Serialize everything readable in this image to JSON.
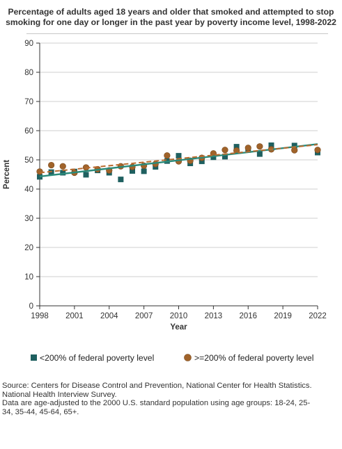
{
  "chart_data": {
    "type": "scatter",
    "title": "Percentage of adults aged 18 years and older that smoked and attempted to stop smoking for one day or longer in the past year by poverty income level, 1998-2022",
    "xlabel": "Year",
    "ylabel": "Percent",
    "xlim": [
      1998,
      2022
    ],
    "ylim": [
      0,
      90
    ],
    "xticks": [
      1998,
      2001,
      2004,
      2007,
      2010,
      2013,
      2016,
      2019,
      2022
    ],
    "yticks": [
      0,
      10,
      20,
      30,
      40,
      50,
      60,
      70,
      80,
      90
    ],
    "grid": "horizontal",
    "legend_position": "bottom",
    "series": [
      {
        "name": "<200% of federal poverty level",
        "marker": "square",
        "color": "#1f6060",
        "trend_color": "#2a8a7a",
        "trend_style": "solid",
        "trend": [
          [
            1998,
            44.3
          ],
          [
            2022,
            55.4
          ]
        ],
        "points": [
          [
            1998,
            44.2
          ],
          [
            1999,
            45.8
          ],
          [
            2000,
            45.6
          ],
          [
            2001,
            46.0
          ],
          [
            2002,
            44.9
          ],
          [
            2003,
            46.4
          ],
          [
            2004,
            45.6
          ],
          [
            2005,
            43.3
          ],
          [
            2006,
            46.2
          ],
          [
            2007,
            46.1
          ],
          [
            2008,
            47.6
          ],
          [
            2009,
            49.6
          ],
          [
            2010,
            51.4
          ],
          [
            2011,
            48.8
          ],
          [
            2012,
            49.5
          ],
          [
            2013,
            50.9
          ],
          [
            2014,
            51.1
          ],
          [
            2015,
            54.5
          ],
          [
            2016,
            53.4
          ],
          [
            2017,
            52.0
          ],
          [
            2018,
            55.0
          ],
          [
            2020,
            54.9
          ],
          [
            2022,
            52.5
          ]
        ]
      },
      {
        "name": ">=200% of federal poverty level",
        "marker": "circle",
        "color": "#a0632a",
        "trend_color": "#b86a2e",
        "trend_style": "dashed",
        "trend": [
          [
            1998,
            45.6
          ],
          [
            2022,
            55.2
          ]
        ],
        "points": [
          [
            1998,
            46.0
          ],
          [
            1999,
            48.2
          ],
          [
            2000,
            47.8
          ],
          [
            2001,
            45.6
          ],
          [
            2002,
            47.4
          ],
          [
            2003,
            46.8
          ],
          [
            2004,
            46.4
          ],
          [
            2005,
            47.8
          ],
          [
            2006,
            47.6
          ],
          [
            2007,
            48.0
          ],
          [
            2008,
            48.6
          ],
          [
            2009,
            51.5
          ],
          [
            2010,
            49.5
          ],
          [
            2011,
            49.7
          ],
          [
            2012,
            50.7
          ],
          [
            2013,
            52.2
          ],
          [
            2014,
            53.4
          ],
          [
            2015,
            53.2
          ],
          [
            2016,
            54.1
          ],
          [
            2017,
            54.6
          ],
          [
            2018,
            53.6
          ],
          [
            2020,
            53.3
          ],
          [
            2022,
            53.4
          ]
        ]
      }
    ]
  },
  "legend": {
    "item_1": "<200% of federal poverty level",
    "item_2": ">=200% of federal poverty level"
  },
  "source_lines": [
    "Source: Centers for Disease Control and Prevention, National Center for Health Statistics.",
    "National Health Interview Survey.",
    "Data are age-adjusted to the 2000 U.S. standard population using age groups: 18-24, 25-",
    "34, 35-44, 45-64, 65+."
  ]
}
